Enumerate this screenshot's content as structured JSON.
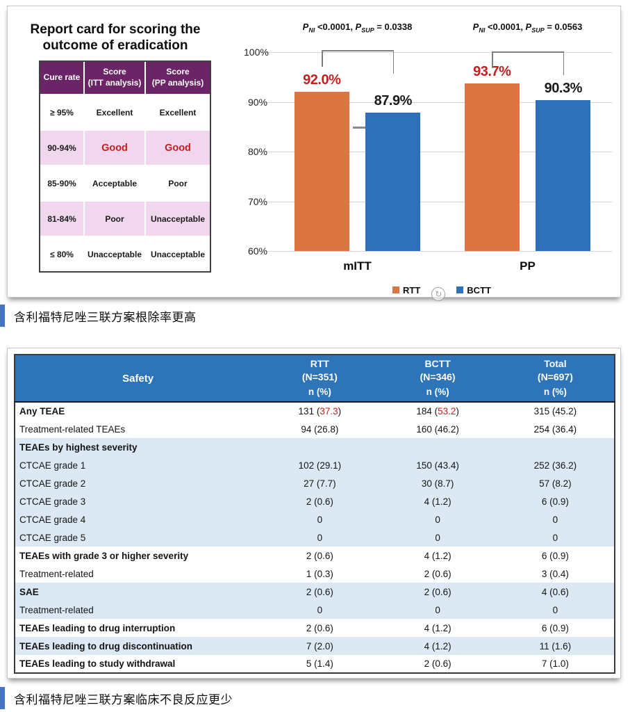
{
  "colors": {
    "purple_header": "#6B2465",
    "pink_row": "#F1D7EE",
    "red_text": "#C41E1E",
    "table_header_blue": "#2E74B8",
    "shaded_row_blue": "#DCE8F3",
    "caption_bar_blue": "#4674C4",
    "bracket_gray": "#7e7e7e"
  },
  "report_card": {
    "title": "Report card for scoring the\noutcome of eradication",
    "columns": [
      "Cure rate",
      "Score\n(ITT analysis)",
      "Score\n(PP analysis)"
    ],
    "rows": [
      {
        "cure": "≥ 95%",
        "itt": "Excellent",
        "pp": "Excellent",
        "shaded": false,
        "red": false
      },
      {
        "cure": "90-94%",
        "itt": "Good",
        "pp": "Good",
        "shaded": true,
        "red": true
      },
      {
        "cure": "85-90%",
        "itt": "Acceptable",
        "pp": "Poor",
        "shaded": false,
        "red": false
      },
      {
        "cure": "81-84%",
        "itt": "Poor",
        "pp": "Unacceptable",
        "shaded": true,
        "red": false
      },
      {
        "cure": "≤ 80%",
        "itt": "Unacceptable",
        "pp": "Unacceptable",
        "shaded": false,
        "red": false
      }
    ]
  },
  "chart_data": {
    "type": "bar",
    "categories": [
      "mITT",
      "PP"
    ],
    "series": [
      {
        "name": "RTT",
        "color": "#DB7642",
        "values": [
          92.0,
          93.7
        ],
        "labels": [
          "92.0%",
          "93.7%"
        ],
        "label_color": "#C41E1E"
      },
      {
        "name": "BCTT",
        "color": "#2F71B8",
        "values": [
          87.9,
          90.3
        ],
        "labels": [
          "87.9%",
          "90.3%"
        ],
        "label_color": "#1a1a1a"
      }
    ],
    "annotations": [
      "P~NI~ <0.0001, P~SUP~ = 0.0338",
      "P~NI~ <0.0001, P~SUP~ = 0.0563"
    ],
    "ylim": [
      60,
      100
    ],
    "yticks": [
      "100%",
      "90%",
      "80%",
      "70%",
      "60%"
    ],
    "grid": true,
    "legend_position": "bottom",
    "margin_tick": {
      "category": "mITT",
      "value": 85
    }
  },
  "captions": {
    "eradication": "含利福特尼唑三联方案根除率更高",
    "safety": "含利福特尼唑三联方案临床不良反应更少"
  },
  "safety_table": {
    "header": {
      "col0": "Safety",
      "groups": [
        {
          "name": "RTT",
          "n": "(N=351)"
        },
        {
          "name": "BCTT",
          "n": "(N=346)"
        },
        {
          "name": "Total",
          "n": "(N=697)"
        }
      ],
      "subheader": [
        "n (%)",
        "n (%)",
        "n (%)"
      ]
    },
    "rows": [
      {
        "label": "Any TEAE",
        "bold": true,
        "indent": false,
        "shaded": false,
        "cells": [
          [
            "131 (",
            "37.3",
            ")"
          ],
          [
            "184 (",
            "53.2",
            ")"
          ],
          [
            "315 (45.2)"
          ]
        ]
      },
      {
        "label": "Treatment-related TEAEs",
        "bold": false,
        "indent": true,
        "shaded": false,
        "cells": [
          [
            "94 (26.8)"
          ],
          [
            "160 (46.2)"
          ],
          [
            "254 (36.4)"
          ]
        ]
      },
      {
        "label": "TEAEs by highest severity",
        "bold": true,
        "indent": false,
        "shaded": true,
        "cells": [
          [
            ""
          ],
          [
            ""
          ],
          [
            ""
          ]
        ]
      },
      {
        "label": "CTCAE grade 1",
        "bold": false,
        "indent": true,
        "shaded": true,
        "cells": [
          [
            "102 (29.1)"
          ],
          [
            "150 (43.4)"
          ],
          [
            "252 (36.2)"
          ]
        ]
      },
      {
        "label": "CTCAE grade 2",
        "bold": false,
        "indent": true,
        "shaded": true,
        "cells": [
          [
            "27 (7.7)"
          ],
          [
            "30 (8.7)"
          ],
          [
            "57 (8.2)"
          ]
        ]
      },
      {
        "label": "CTCAE grade 3",
        "bold": false,
        "indent": true,
        "shaded": true,
        "cells": [
          [
            "2 (0.6)"
          ],
          [
            "4 (1.2)"
          ],
          [
            "6 (0.9)"
          ]
        ]
      },
      {
        "label": "CTCAE grade 4",
        "bold": false,
        "indent": true,
        "shaded": true,
        "cells": [
          [
            "0"
          ],
          [
            "0"
          ],
          [
            "0"
          ]
        ]
      },
      {
        "label": "CTCAE grade 5",
        "bold": false,
        "indent": true,
        "shaded": true,
        "cells": [
          [
            "0"
          ],
          [
            "0"
          ],
          [
            "0"
          ]
        ]
      },
      {
        "label": "TEAEs with grade 3 or higher severity",
        "bold": true,
        "indent": false,
        "shaded": false,
        "cells": [
          [
            "2 (0.6)"
          ],
          [
            "4 (1.2)"
          ],
          [
            "6 (0.9)"
          ]
        ]
      },
      {
        "label": "Treatment-related",
        "bold": false,
        "indent": true,
        "shaded": false,
        "cells": [
          [
            "1 (0.3)"
          ],
          [
            "2 (0.6)"
          ],
          [
            "3 (0.4)"
          ]
        ]
      },
      {
        "label": "SAE",
        "bold": true,
        "indent": false,
        "shaded": true,
        "cells": [
          [
            "2 (0.6)"
          ],
          [
            "2 (0.6)"
          ],
          [
            "4 (0.6)"
          ]
        ]
      },
      {
        "label": "Treatment-related",
        "bold": false,
        "indent": true,
        "shaded": true,
        "cells": [
          [
            "0"
          ],
          [
            "0"
          ],
          [
            "0"
          ]
        ]
      },
      {
        "label": "TEAEs leading to drug interruption",
        "bold": true,
        "indent": false,
        "shaded": false,
        "cells": [
          [
            "2 (0.6)"
          ],
          [
            "4 (1.2)"
          ],
          [
            "6 (0.9)"
          ]
        ]
      },
      {
        "label": "TEAEs leading to drug discontinuation",
        "bold": true,
        "indent": false,
        "shaded": true,
        "cells": [
          [
            "7 (2.0)"
          ],
          [
            "4 (1.2)"
          ],
          [
            "11 (1.6)"
          ]
        ]
      },
      {
        "label": "TEAEs leading to study withdrawal",
        "bold": true,
        "indent": false,
        "shaded": false,
        "cells": [
          [
            "5 (1.4)"
          ],
          [
            "2 (0.6)"
          ],
          [
            "7 (1.0)"
          ]
        ]
      }
    ]
  }
}
